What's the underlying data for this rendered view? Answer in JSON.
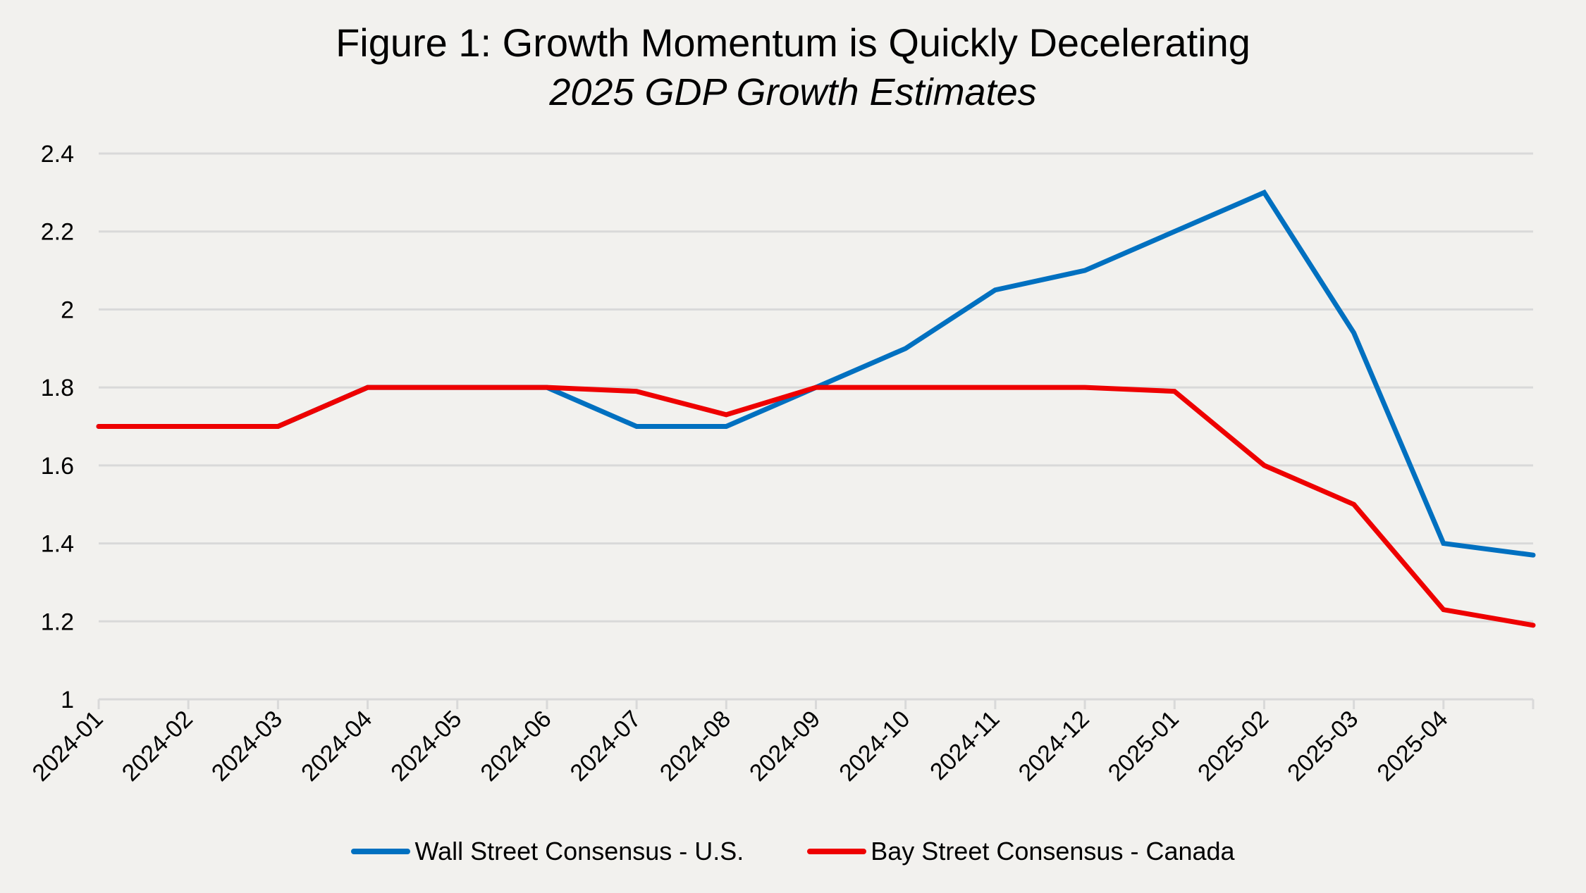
{
  "chart_data": {
    "type": "line",
    "title": "Figure 1: Growth Momentum is Quickly Decelerating",
    "subtitle": "2025 GDP Growth Estimates",
    "xlabel": "",
    "ylabel": "",
    "categories": [
      "2024-01",
      "2024-02",
      "2024-03",
      "2024-04",
      "2024-05",
      "2024-06",
      "2024-07",
      "2024-08",
      "2024-09",
      "2024-10",
      "2024-11",
      "2024-12",
      "2025-01",
      "2025-02",
      "2025-03",
      "2025-04",
      ""
    ],
    "ylim": [
      1,
      2.4
    ],
    "yticks": [
      1,
      1.2,
      1.4,
      1.6,
      1.8,
      2,
      2.2,
      2.4
    ],
    "ytick_labels": [
      "1",
      "1.2",
      "1.4",
      "1.6",
      "1.8",
      "2",
      "2.2",
      "2.4"
    ],
    "grid": true,
    "legend_position": "bottom",
    "series": [
      {
        "name": "Wall Street Consensus - U.S.",
        "color": "#0070c0",
        "values": [
          1.7,
          1.7,
          1.7,
          1.8,
          1.8,
          1.8,
          1.7,
          1.7,
          1.8,
          1.9,
          2.05,
          2.1,
          2.2,
          2.3,
          1.94,
          1.4,
          1.37
        ]
      },
      {
        "name": "Bay Street Consensus - Canada",
        "color": "#ee0000",
        "values": [
          1.7,
          1.7,
          1.7,
          1.8,
          1.8,
          1.8,
          1.79,
          1.73,
          1.8,
          1.8,
          1.8,
          1.8,
          1.79,
          1.6,
          1.5,
          1.23,
          1.19
        ]
      }
    ]
  }
}
